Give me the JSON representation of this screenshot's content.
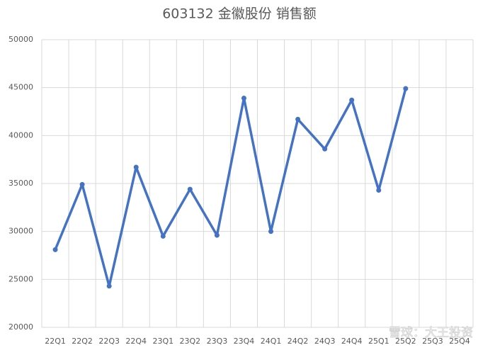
{
  "chart_data": {
    "type": "line",
    "title": "603132 金徽股份 销售额",
    "categories": [
      "22Q1",
      "22Q2",
      "22Q3",
      "22Q4",
      "23Q1",
      "23Q2",
      "23Q3",
      "23Q4",
      "24Q1",
      "24Q2",
      "24Q3",
      "24Q4",
      "25Q1",
      "25Q2",
      "25Q3",
      "25Q4"
    ],
    "series": [
      {
        "name": "销售额",
        "color": "#4472c4",
        "values": [
          28100,
          34900,
          24300,
          36700,
          29500,
          34400,
          29600,
          43900,
          30000,
          41700,
          38600,
          43700,
          34300,
          44900,
          null,
          null
        ]
      }
    ],
    "ylim": [
      20000,
      50000
    ],
    "yticks": [
      20000,
      25000,
      30000,
      35000,
      40000,
      45000,
      50000
    ],
    "grid": true,
    "watermark": "雪球：大王投资"
  }
}
